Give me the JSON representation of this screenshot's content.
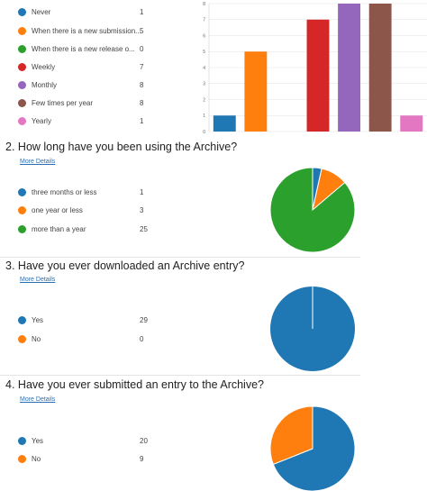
{
  "questions": [
    {
      "number": "",
      "title": "",
      "more_details": "",
      "chart_data": {
        "type": "bar",
        "categories": [
          "Never",
          "When there is a new submission...",
          "When there is a new release o...",
          "Weekly",
          "Monthly",
          "Few times per year",
          "Yearly"
        ],
        "values": [
          1,
          5,
          0,
          7,
          8,
          8,
          1
        ],
        "colors": [
          "#1f77b4",
          "#ff7f0e",
          "#2ca02c",
          "#d62728",
          "#9467bd",
          "#8c564b",
          "#e377c2"
        ],
        "ylim": [
          0,
          8
        ],
        "yticks": [
          "0",
          "1",
          "2",
          "3",
          "4",
          "5",
          "6",
          "7",
          "8"
        ],
        "grid": true,
        "xlabel": "",
        "ylabel": ""
      }
    },
    {
      "number": "2.",
      "title": "How long have you been using the Archive?",
      "more_details": "More Details",
      "chart_data": {
        "type": "pie",
        "categories": [
          "three months or less",
          "one year or less",
          "more than a year"
        ],
        "values": [
          1,
          3,
          25
        ],
        "colors": [
          "#1f77b4",
          "#ff7f0e",
          "#2ca02c"
        ]
      }
    },
    {
      "number": "3.",
      "title": "Have you ever downloaded an Archive entry?",
      "more_details": "More Details",
      "chart_data": {
        "type": "pie",
        "categories": [
          "Yes",
          "No"
        ],
        "values": [
          29,
          0
        ],
        "colors": [
          "#1f77b4",
          "#ff7f0e"
        ]
      }
    },
    {
      "number": "4.",
      "title": "Have you ever submitted an entry to the Archive?",
      "more_details": "More Details",
      "chart_data": {
        "type": "pie",
        "categories": [
          "Yes",
          "No"
        ],
        "values": [
          20,
          9
        ],
        "colors": [
          "#1f77b4",
          "#ff7f0e"
        ]
      }
    }
  ]
}
